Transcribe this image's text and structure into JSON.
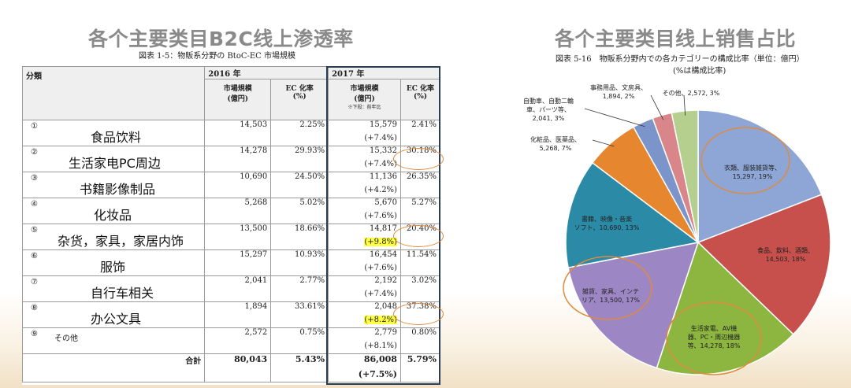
{
  "left_panel": {
    "title": "各个主要类目B2C线上渗透率",
    "subtitle": "図表 1-5：物販系分野の BtoC-EC 市場規模",
    "header": {
      "category": "分類",
      "year_2016": "2016 年",
      "year_2017": "2017 年",
      "market_size": "市場規模",
      "unit": "(億円)",
      "ec_rate": "EC 化率",
      "pct": "(%)",
      "note": "※下段：前年比"
    },
    "total_label": "合計"
  },
  "chart_data": [
    {
      "type": "table",
      "title": "図表 1-5：物販系分野の BtoC-EC 市場規模",
      "columns": [
        "分類",
        "2016 市場規模 (億円)",
        "2016 EC 化率 (%)",
        "2017 市場規模 (億円)",
        "2017 EC 化率 (%)"
      ],
      "rows": [
        {
          "no": "①",
          "name": "食品饮料",
          "m2016": "14,503",
          "ec2016": "2.25%",
          "m2017": "15,579",
          "growth": "(+7.4%)",
          "ec2017": "2.41%",
          "hl_growth": false,
          "circled": false
        },
        {
          "no": "②",
          "name": "生活家电PC周边",
          "m2016": "14,278",
          "ec2016": "29.93%",
          "m2017": "15,332",
          "growth": "(+7.4%)",
          "ec2017": "30.18%",
          "hl_growth": false,
          "circled": true
        },
        {
          "no": "③",
          "name": "书籍影像制品",
          "m2016": "10,690",
          "ec2016": "24.50%",
          "m2017": "11,136",
          "growth": "(+4.2%)",
          "ec2017": "26.35%",
          "hl_growth": false,
          "circled": false
        },
        {
          "no": "④",
          "name": "化妆品",
          "m2016": "5,268",
          "ec2016": "5.02%",
          "m2017": "5,670",
          "growth": "(+7.6%)",
          "ec2017": "5.27%",
          "hl_growth": false,
          "circled": false
        },
        {
          "no": "⑤",
          "name": "杂货，家具，家居内饰",
          "m2016": "13,500",
          "ec2016": "18.66%",
          "m2017": "14,817",
          "growth": "(+9.8%)",
          "ec2017": "20.40%",
          "hl_growth": true,
          "circled": true
        },
        {
          "no": "⑥",
          "name": "服饰",
          "m2016": "15,297",
          "ec2016": "10.93%",
          "m2017": "16,454",
          "growth": "(+7.6%)",
          "ec2017": "11.54%",
          "hl_growth": false,
          "circled": false
        },
        {
          "no": "⑦",
          "name": "自行车相关",
          "m2016": "2,041",
          "ec2016": "2.77%",
          "m2017": "2,192",
          "growth": "(+7.4%)",
          "ec2017": "3.02%",
          "hl_growth": false,
          "circled": false
        },
        {
          "no": "⑧",
          "name": "办公文具",
          "m2016": "1,894",
          "ec2016": "33.61%",
          "m2017": "2,048",
          "growth": "(+8.2%)",
          "ec2017": "37.38%",
          "hl_growth": true,
          "circled": true
        },
        {
          "no": "⑨",
          "name": "その他",
          "m2016": "2,572",
          "ec2016": "0.75%",
          "m2017": "2,779",
          "growth": "(+8.1%)",
          "ec2017": "0.80%",
          "hl_growth": false,
          "circled": false
        }
      ],
      "total": {
        "m2016": "80,043",
        "ec2016": "5.43%",
        "m2017": "86,008",
        "growth": "(+7.5%)",
        "ec2017": "5.79%"
      }
    },
    {
      "type": "pie",
      "title": "図表 5-16　物販系分野内での各カテゴリーの構成比率（単位：億円）",
      "subtitle": "(%は構成比率)",
      "slices": [
        {
          "label": "衣類、服装雑貨等、15,297、19%",
          "value": 15297,
          "percent": 19,
          "color": "#8ea6d6",
          "circled": true
        },
        {
          "label": "食品、飲料、酒類、14,503、18%",
          "value": 14503,
          "percent": 18,
          "color": "#c8504c",
          "circled": false
        },
        {
          "label": "生活家電、AV機器、PC・周辺機器等、14,278、18%",
          "value": 14278,
          "percent": 18,
          "color": "#8cb640",
          "circled": true
        },
        {
          "label": "雑貨、家具、インテリア、13,500、17%",
          "value": 13500,
          "percent": 17,
          "color": "#9d86c4",
          "circled": true
        },
        {
          "label": "書籍、映像・音楽ソフト、10,690、13%",
          "value": 10690,
          "percent": 13,
          "color": "#2b8ba6",
          "circled": false
        },
        {
          "label": "化粧品、医薬品、5,268、7%",
          "value": 5268,
          "percent": 7,
          "color": "#e6862e",
          "circled": false
        },
        {
          "label": "自動車、自動二輪車、パーツ等、2,041、3%",
          "value": 2041,
          "percent": 3,
          "color": "#7b94c9",
          "circled": false
        },
        {
          "label": "事務用品、文房具、1,894、2%",
          "value": 1894,
          "percent": 2,
          "color": "#d8868a",
          "circled": false
        },
        {
          "label": "その他、2,572、3%",
          "value": 2572,
          "percent": 3,
          "color": "#b4cf8e",
          "circled": false
        }
      ]
    }
  ],
  "right_panel": {
    "title": "各个主要类目线上销售占比",
    "subtitle": "図表 5-16　物販系分野内での各カテゴリーの構成比率（単位：億円）",
    "subtitle2": "(%は構成比率)",
    "labels": {
      "s0_l1": "衣類、服装雑貨等、",
      "s0_l2": "15,297, 19%",
      "s1_l1": "食品、飲料、酒類、",
      "s1_l2": "14,503, 18%",
      "s2_l1": "生活家電、AV機",
      "s2_l2": "器、PC・周辺機器",
      "s2_l3": "等、14,278, 18%",
      "s3_l1": "雑貨、家具、インテ",
      "s3_l2": "リア、13,500, 17%",
      "s4_l1": "書籍、映像・音楽",
      "s4_l2": "ソフト、10,690, 13%",
      "s5_l1": "化粧品、医薬品、",
      "s5_l2": "5,268, 7%",
      "s6_l1": "自動車、自動二輪",
      "s6_l2": "車、パーツ等、",
      "s6_l3": "2,041, 3%",
      "s7_l1": "事務用品、文房具、",
      "s7_l2": "1,894, 2%",
      "s8_l1": "その他、2,572, 3%"
    }
  }
}
